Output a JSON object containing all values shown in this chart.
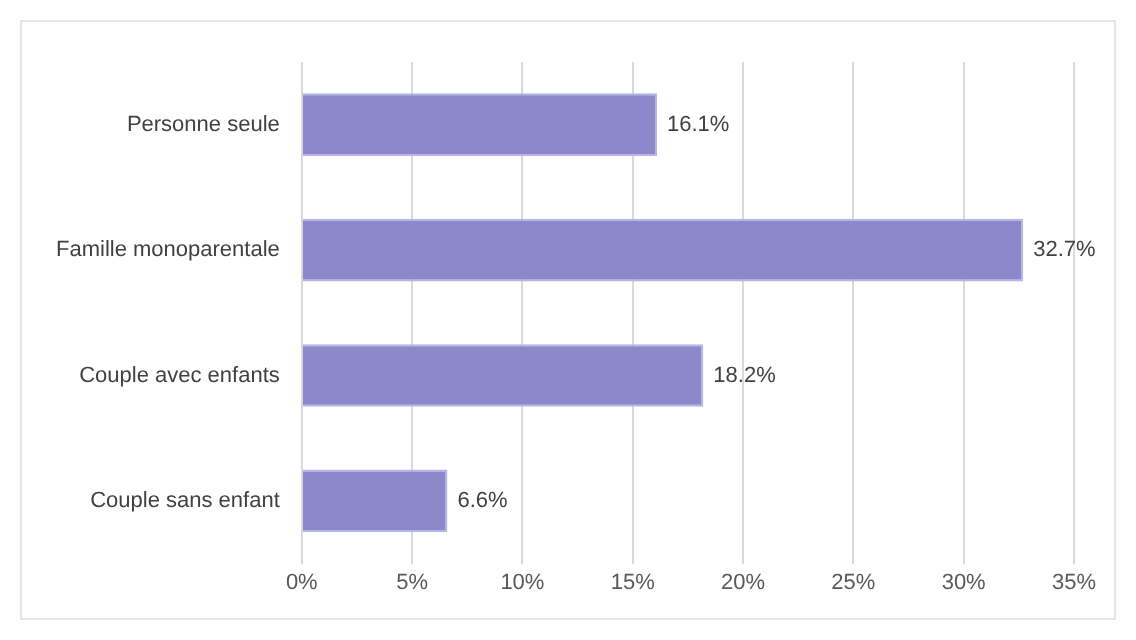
{
  "chart_data": {
    "type": "bar",
    "orientation": "horizontal",
    "categories": [
      "Personne seule",
      "Famille monoparentale",
      "Couple avec enfants",
      "Couple sans enfant"
    ],
    "values": [
      16.1,
      32.7,
      18.2,
      6.6
    ],
    "value_labels": [
      "16.1%",
      "32.7%",
      "18.2%",
      "6.6%"
    ],
    "color": "#8b89cb",
    "xlim": [
      0,
      35
    ],
    "xticks": [
      {
        "value": 0,
        "label": "0%"
      },
      {
        "value": 5,
        "label": "5%"
      },
      {
        "value": 10,
        "label": "10%"
      },
      {
        "value": 15,
        "label": "15%"
      },
      {
        "value": 20,
        "label": "20%"
      },
      {
        "value": 25,
        "label": "25%"
      },
      {
        "value": 30,
        "label": "30%"
      },
      {
        "value": 35,
        "label": "35%"
      }
    ],
    "grid": "x",
    "legend": false
  }
}
